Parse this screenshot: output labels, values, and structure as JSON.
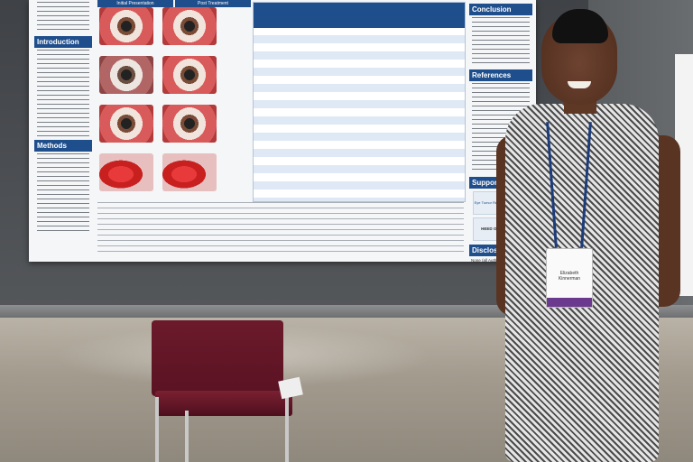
{
  "poster": {
    "sections_left": [
      "Introduction",
      "Methods"
    ],
    "sections_right": [
      "Conclusion",
      "References",
      "Support",
      "Disclosure"
    ],
    "photo_headers": [
      "Initial Presentation",
      "Post Treatment"
    ],
    "support_logo": "Eye Tumor Research Foundation",
    "support_text": "HEED OPHTHALMIC",
    "disclosure_text": "None (all Authors)"
  },
  "badge": {
    "name_line1": "Elizabeth",
    "name_line2": "Kinnerman"
  },
  "colors": {
    "poster_accent": "#1f4e8c",
    "chair": "#6b1a2b",
    "badge_stripe": "#6b3a8e"
  }
}
